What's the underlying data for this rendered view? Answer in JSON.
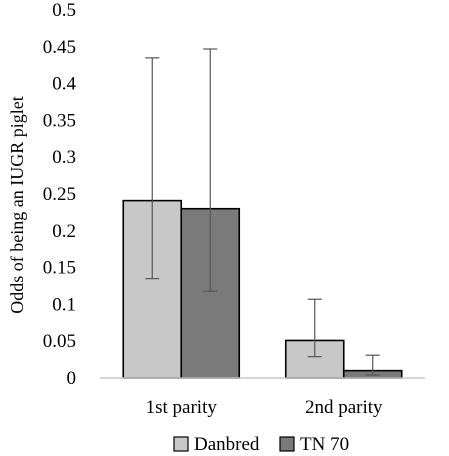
{
  "chart_data": {
    "type": "bar",
    "title": "",
    "xlabel": "",
    "ylabel": "Odds of being an IUGR piglet",
    "categories": [
      "1st parity",
      "2nd parity"
    ],
    "ylim": [
      0,
      0.5
    ],
    "yticks": [
      "0",
      "0.05",
      "0.1",
      "0.15",
      "0.2",
      "0.25",
      "0.3",
      "0.35",
      "0.4",
      "0.45",
      "0.5"
    ],
    "grid": false,
    "legend_position": "bottom",
    "series": [
      {
        "name": "Danbred",
        "color": "#c8c8c8",
        "values": [
          0.241,
          0.051
        ],
        "error_low": [
          0.135,
          0.029
        ],
        "error_high": [
          0.435,
          0.107
        ]
      },
      {
        "name": "TN 70",
        "color": "#7a7a7a",
        "values": [
          0.23,
          0.01
        ],
        "error_low": [
          0.118,
          0.004
        ],
        "error_high": [
          0.447,
          0.031
        ]
      }
    ]
  }
}
